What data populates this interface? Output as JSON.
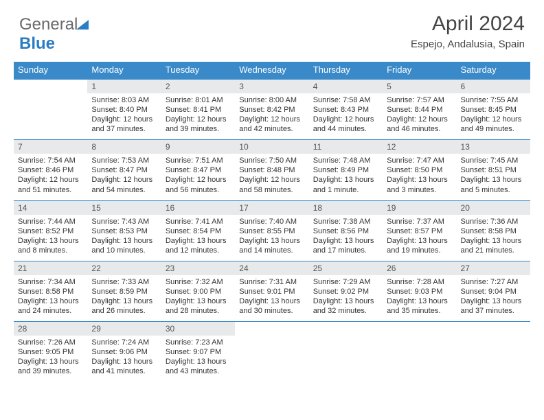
{
  "brand": {
    "part1": "General",
    "part2": "Blue"
  },
  "header": {
    "month_year": "April 2024",
    "location": "Espejo, Andalusia, Spain"
  },
  "colors": {
    "accent": "#3a8ac9",
    "header_bg": "#3a8ac9",
    "daynum_bg": "#e7e9eb",
    "text": "#333333",
    "page_bg": "#ffffff"
  },
  "weekdays": [
    "Sunday",
    "Monday",
    "Tuesday",
    "Wednesday",
    "Thursday",
    "Friday",
    "Saturday"
  ],
  "rows": [
    [
      null,
      {
        "n": "1",
        "sr": "Sunrise: 8:03 AM",
        "ss": "Sunset: 8:40 PM",
        "d1": "Daylight: 12 hours",
        "d2": "and 37 minutes."
      },
      {
        "n": "2",
        "sr": "Sunrise: 8:01 AM",
        "ss": "Sunset: 8:41 PM",
        "d1": "Daylight: 12 hours",
        "d2": "and 39 minutes."
      },
      {
        "n": "3",
        "sr": "Sunrise: 8:00 AM",
        "ss": "Sunset: 8:42 PM",
        "d1": "Daylight: 12 hours",
        "d2": "and 42 minutes."
      },
      {
        "n": "4",
        "sr": "Sunrise: 7:58 AM",
        "ss": "Sunset: 8:43 PM",
        "d1": "Daylight: 12 hours",
        "d2": "and 44 minutes."
      },
      {
        "n": "5",
        "sr": "Sunrise: 7:57 AM",
        "ss": "Sunset: 8:44 PM",
        "d1": "Daylight: 12 hours",
        "d2": "and 46 minutes."
      },
      {
        "n": "6",
        "sr": "Sunrise: 7:55 AM",
        "ss": "Sunset: 8:45 PM",
        "d1": "Daylight: 12 hours",
        "d2": "and 49 minutes."
      }
    ],
    [
      {
        "n": "7",
        "sr": "Sunrise: 7:54 AM",
        "ss": "Sunset: 8:46 PM",
        "d1": "Daylight: 12 hours",
        "d2": "and 51 minutes."
      },
      {
        "n": "8",
        "sr": "Sunrise: 7:53 AM",
        "ss": "Sunset: 8:47 PM",
        "d1": "Daylight: 12 hours",
        "d2": "and 54 minutes."
      },
      {
        "n": "9",
        "sr": "Sunrise: 7:51 AM",
        "ss": "Sunset: 8:47 PM",
        "d1": "Daylight: 12 hours",
        "d2": "and 56 minutes."
      },
      {
        "n": "10",
        "sr": "Sunrise: 7:50 AM",
        "ss": "Sunset: 8:48 PM",
        "d1": "Daylight: 12 hours",
        "d2": "and 58 minutes."
      },
      {
        "n": "11",
        "sr": "Sunrise: 7:48 AM",
        "ss": "Sunset: 8:49 PM",
        "d1": "Daylight: 13 hours",
        "d2": "and 1 minute."
      },
      {
        "n": "12",
        "sr": "Sunrise: 7:47 AM",
        "ss": "Sunset: 8:50 PM",
        "d1": "Daylight: 13 hours",
        "d2": "and 3 minutes."
      },
      {
        "n": "13",
        "sr": "Sunrise: 7:45 AM",
        "ss": "Sunset: 8:51 PM",
        "d1": "Daylight: 13 hours",
        "d2": "and 5 minutes."
      }
    ],
    [
      {
        "n": "14",
        "sr": "Sunrise: 7:44 AM",
        "ss": "Sunset: 8:52 PM",
        "d1": "Daylight: 13 hours",
        "d2": "and 8 minutes."
      },
      {
        "n": "15",
        "sr": "Sunrise: 7:43 AM",
        "ss": "Sunset: 8:53 PM",
        "d1": "Daylight: 13 hours",
        "d2": "and 10 minutes."
      },
      {
        "n": "16",
        "sr": "Sunrise: 7:41 AM",
        "ss": "Sunset: 8:54 PM",
        "d1": "Daylight: 13 hours",
        "d2": "and 12 minutes."
      },
      {
        "n": "17",
        "sr": "Sunrise: 7:40 AM",
        "ss": "Sunset: 8:55 PM",
        "d1": "Daylight: 13 hours",
        "d2": "and 14 minutes."
      },
      {
        "n": "18",
        "sr": "Sunrise: 7:38 AM",
        "ss": "Sunset: 8:56 PM",
        "d1": "Daylight: 13 hours",
        "d2": "and 17 minutes."
      },
      {
        "n": "19",
        "sr": "Sunrise: 7:37 AM",
        "ss": "Sunset: 8:57 PM",
        "d1": "Daylight: 13 hours",
        "d2": "and 19 minutes."
      },
      {
        "n": "20",
        "sr": "Sunrise: 7:36 AM",
        "ss": "Sunset: 8:58 PM",
        "d1": "Daylight: 13 hours",
        "d2": "and 21 minutes."
      }
    ],
    [
      {
        "n": "21",
        "sr": "Sunrise: 7:34 AM",
        "ss": "Sunset: 8:58 PM",
        "d1": "Daylight: 13 hours",
        "d2": "and 24 minutes."
      },
      {
        "n": "22",
        "sr": "Sunrise: 7:33 AM",
        "ss": "Sunset: 8:59 PM",
        "d1": "Daylight: 13 hours",
        "d2": "and 26 minutes."
      },
      {
        "n": "23",
        "sr": "Sunrise: 7:32 AM",
        "ss": "Sunset: 9:00 PM",
        "d1": "Daylight: 13 hours",
        "d2": "and 28 minutes."
      },
      {
        "n": "24",
        "sr": "Sunrise: 7:31 AM",
        "ss": "Sunset: 9:01 PM",
        "d1": "Daylight: 13 hours",
        "d2": "and 30 minutes."
      },
      {
        "n": "25",
        "sr": "Sunrise: 7:29 AM",
        "ss": "Sunset: 9:02 PM",
        "d1": "Daylight: 13 hours",
        "d2": "and 32 minutes."
      },
      {
        "n": "26",
        "sr": "Sunrise: 7:28 AM",
        "ss": "Sunset: 9:03 PM",
        "d1": "Daylight: 13 hours",
        "d2": "and 35 minutes."
      },
      {
        "n": "27",
        "sr": "Sunrise: 7:27 AM",
        "ss": "Sunset: 9:04 PM",
        "d1": "Daylight: 13 hours",
        "d2": "and 37 minutes."
      }
    ],
    [
      {
        "n": "28",
        "sr": "Sunrise: 7:26 AM",
        "ss": "Sunset: 9:05 PM",
        "d1": "Daylight: 13 hours",
        "d2": "and 39 minutes."
      },
      {
        "n": "29",
        "sr": "Sunrise: 7:24 AM",
        "ss": "Sunset: 9:06 PM",
        "d1": "Daylight: 13 hours",
        "d2": "and 41 minutes."
      },
      {
        "n": "30",
        "sr": "Sunrise: 7:23 AM",
        "ss": "Sunset: 9:07 PM",
        "d1": "Daylight: 13 hours",
        "d2": "and 43 minutes."
      },
      null,
      null,
      null,
      null
    ]
  ]
}
